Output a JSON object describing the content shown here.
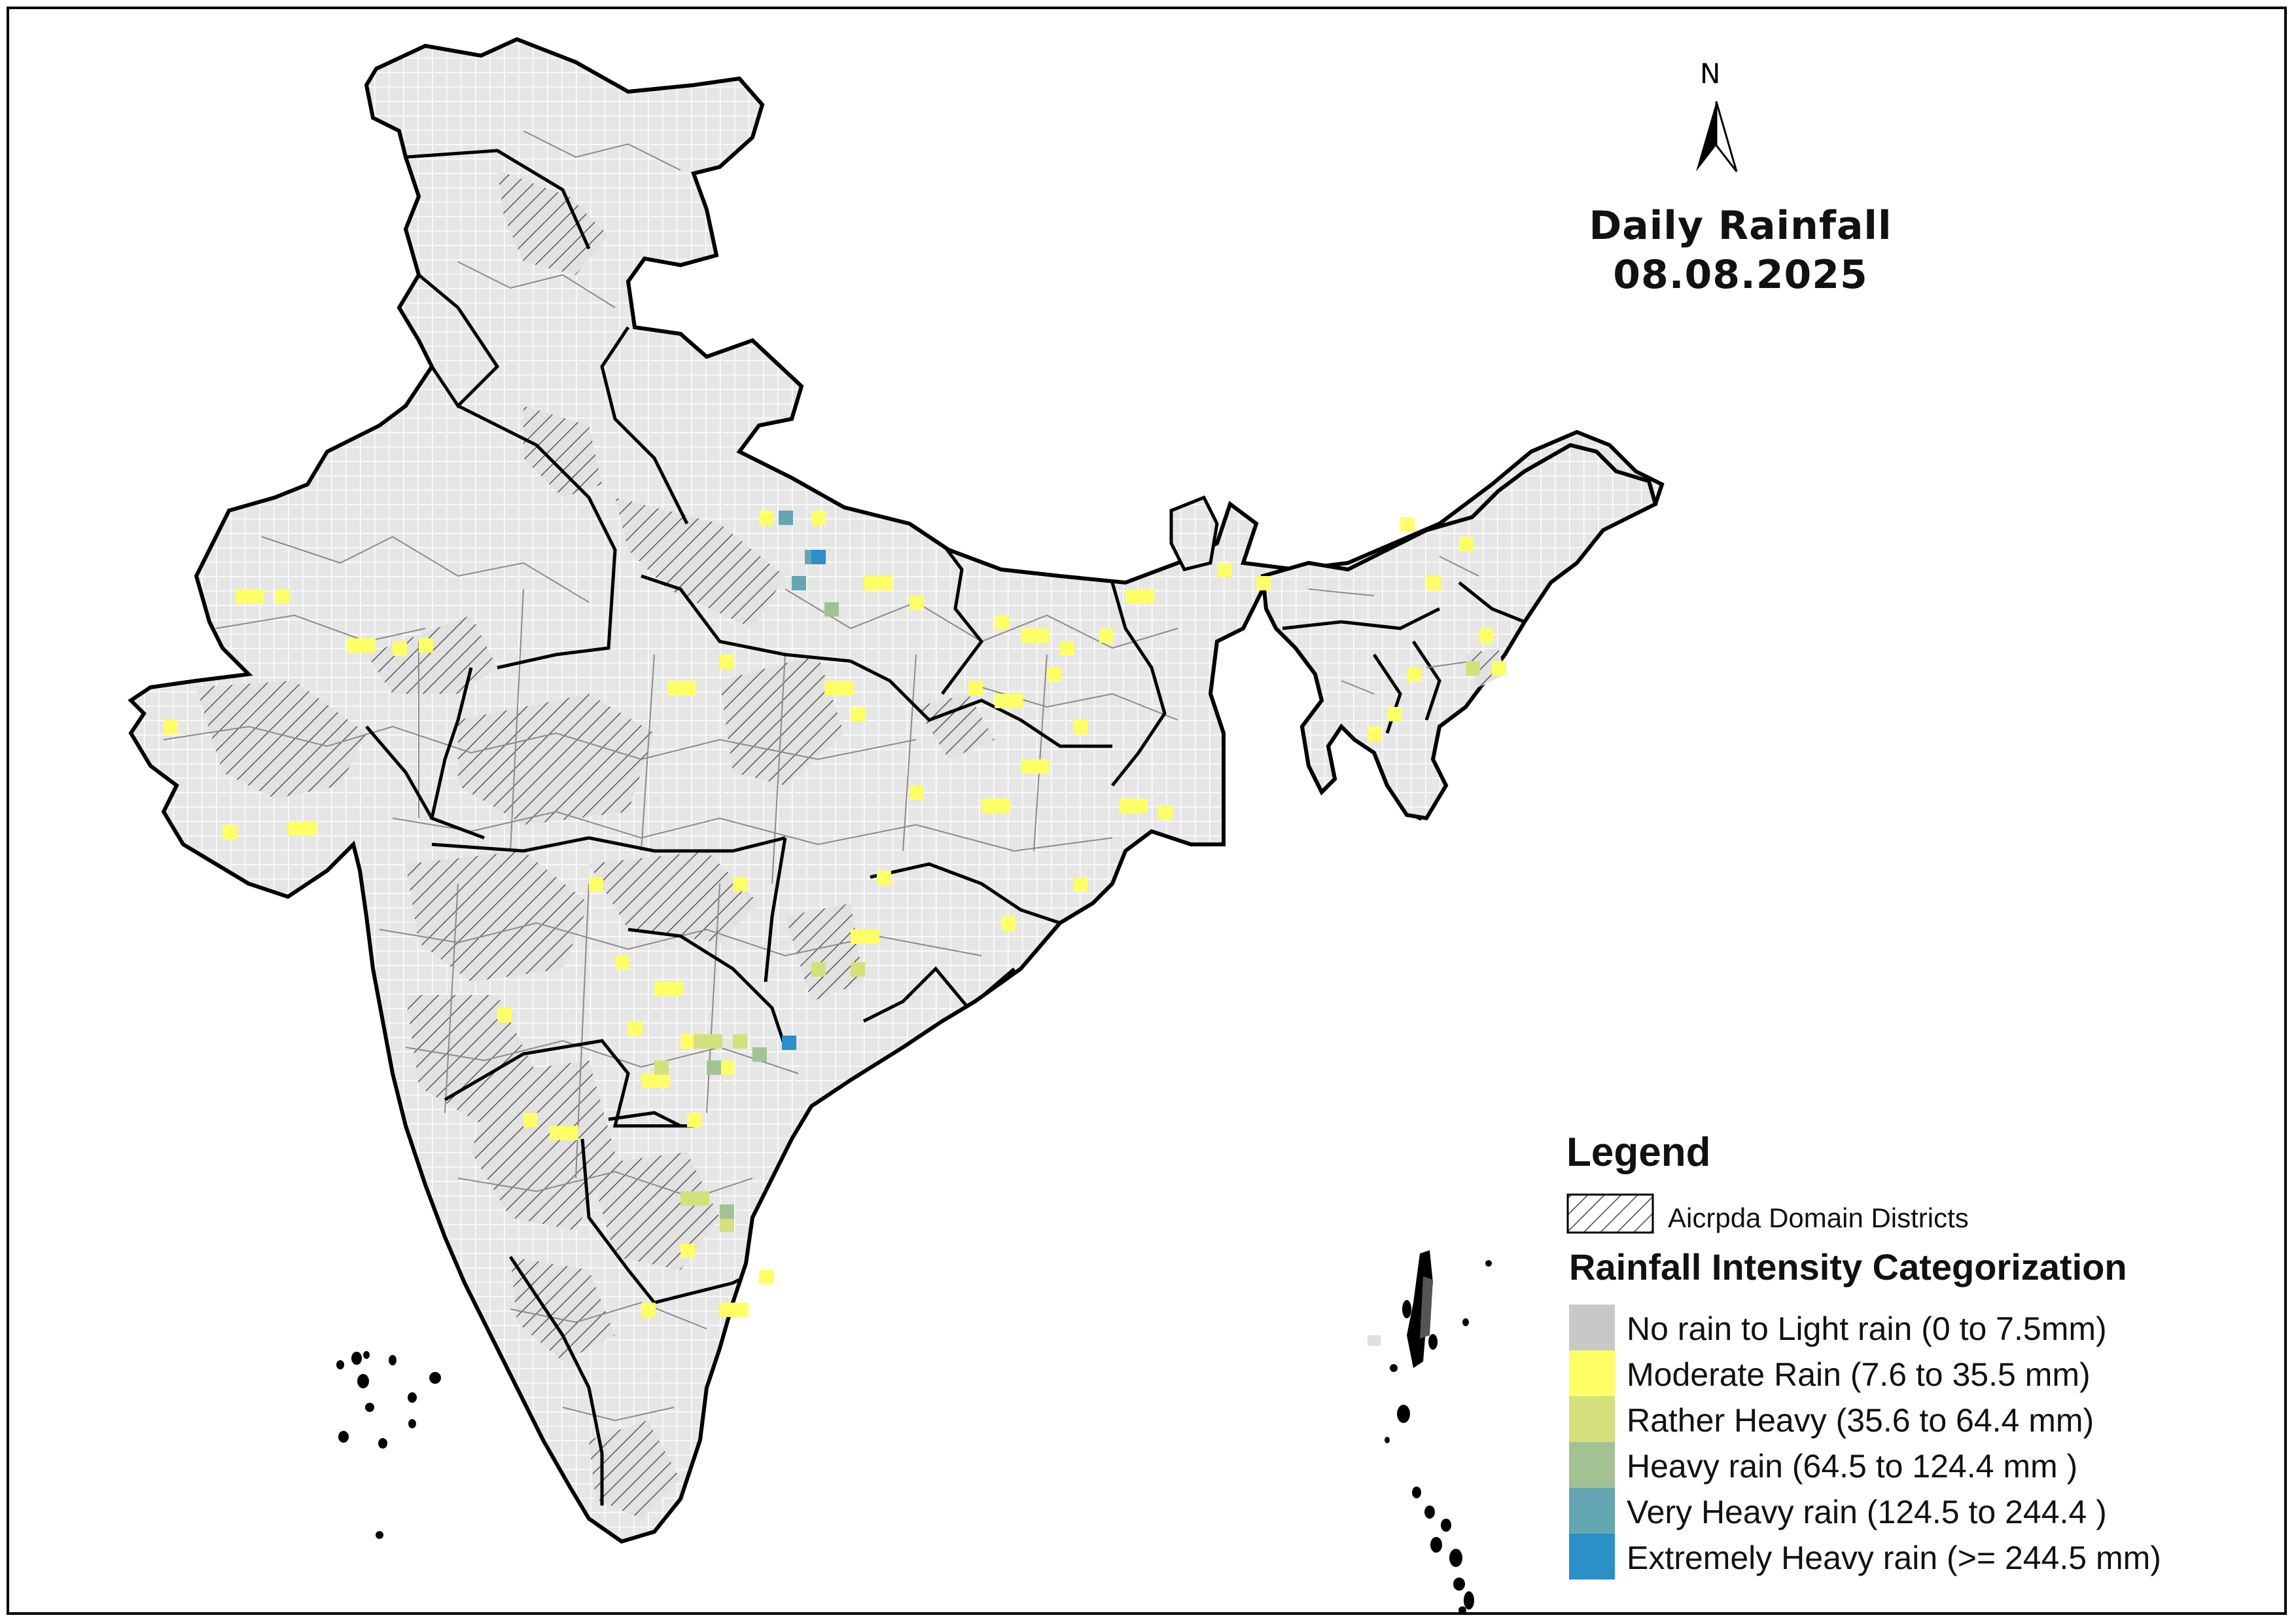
{
  "title": {
    "line1": "Daily Rainfall",
    "line2": "08.08.2025"
  },
  "north_arrow": {
    "label": "N"
  },
  "legend": {
    "title": "Legend",
    "domain_districts_label": "Aicrpda Domain Districts",
    "intensity_title": "Rainfall Intensity Categorization",
    "categories": [
      {
        "label": "No rain to Light rain (0 to 7.5mm)",
        "color": "#c8c8c8"
      },
      {
        "label": "Moderate Rain (7.6 to 35.5 mm)",
        "color": "#ffff66"
      },
      {
        "label": "Rather Heavy (35.6 to 64.4 mm)",
        "color": "#d4e07c"
      },
      {
        "label": "Heavy rain (64.5 to 124.4 mm )",
        "color": "#a3c294"
      },
      {
        "label": "Very Heavy rain (124.5 to 244.4 )",
        "color": "#64a6b2"
      },
      {
        "label": "Extremely Heavy rain  (>= 244.5 mm)",
        "color": "#2b8fc8"
      }
    ]
  },
  "colors": {
    "map_fill": "#e4e4e4",
    "boundary": "#000000",
    "district_line": "#7a7a7a",
    "grid_line": "#ffffff"
  }
}
